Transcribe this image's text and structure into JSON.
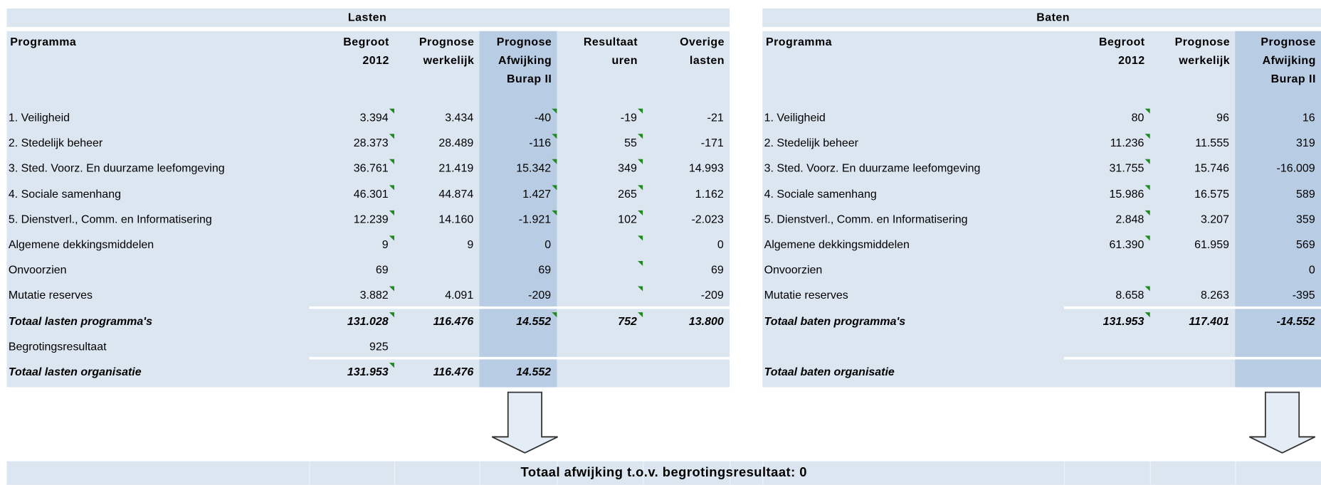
{
  "lasten": {
    "title": "Lasten",
    "headers": [
      [
        "Programma"
      ],
      [
        "Begroot",
        "2012"
      ],
      [
        "Prognose",
        "werkelijk"
      ],
      [
        "Prognose",
        "Afwijking",
        "Burap II"
      ],
      [
        "Resultaat",
        "uren"
      ],
      [
        "Overige",
        "lasten"
      ]
    ],
    "rows": [
      [
        "1. Veiligheid",
        "3.394",
        "3.434",
        "-40",
        "-19",
        "-21"
      ],
      [
        "2. Stedelijk beheer",
        "28.373",
        "28.489",
        "-116",
        "55",
        "-171"
      ],
      [
        "3. Sted. Voorz. En duurzame leefomgeving",
        "36.761",
        "21.419",
        "15.342",
        "349",
        "14.993"
      ],
      [
        "4. Sociale samenhang",
        "46.301",
        "44.874",
        "1.427",
        "265",
        "1.162"
      ],
      [
        "5. Dienstverl., Comm. en Informatisering",
        "12.239",
        "14.160",
        "-1.921",
        "102",
        "-2.023"
      ],
      [
        "Algemene dekkingsmiddelen",
        "9",
        "9",
        "0",
        null,
        "0"
      ],
      [
        "Onvoorzien",
        "69",
        null,
        "69",
        null,
        "69"
      ],
      [
        "Mutatie reserves",
        "3.882",
        "4.091",
        "-209",
        null,
        "-209"
      ],
      [
        "Totaal lasten programma's",
        "131.028",
        "116.476",
        "14.552",
        "752",
        "13.800"
      ],
      [
        "Begrotingsresultaat",
        "925",
        null,
        null,
        null,
        null
      ],
      [
        "Totaal lasten organisatie",
        "131.953",
        "116.476",
        "14.552",
        null,
        null
      ]
    ]
  },
  "baten": {
    "title": "Baten",
    "headers": [
      [
        "Programma"
      ],
      [
        "Begroot",
        "2012"
      ],
      [
        "Prognose",
        "werkelijk"
      ],
      [
        "Prognose",
        "Afwijking",
        "Burap II"
      ]
    ],
    "rows": [
      [
        "1. Veiligheid",
        "80",
        "96",
        "16"
      ],
      [
        "2. Stedelijk beheer",
        "11.236",
        "11.555",
        "319"
      ],
      [
        "3. Sted. Voorz. En duurzame leefomgeving",
        "31.755",
        "15.746",
        "-16.009"
      ],
      [
        "4. Sociale samenhang",
        "15.986",
        "16.575",
        "589"
      ],
      [
        "5. Dienstverl., Comm. en Informatisering",
        "2.848",
        "3.207",
        "359"
      ],
      [
        "Algemene dekkingsmiddelen",
        "61.390",
        "61.959",
        "569"
      ],
      [
        "Onvoorzien",
        null,
        null,
        "0"
      ],
      [
        "Mutatie reserves",
        "8.658",
        "8.263",
        "-395"
      ],
      [
        "Totaal baten programma's",
        "131.953",
        "117.401",
        "-14.552"
      ],
      [
        null,
        null,
        null,
        null
      ],
      [
        "Totaal baten organisatie",
        null,
        null,
        null
      ]
    ]
  },
  "footer": "Totaal afwijking t.o.v. begrotingsresultaat: 0"
}
